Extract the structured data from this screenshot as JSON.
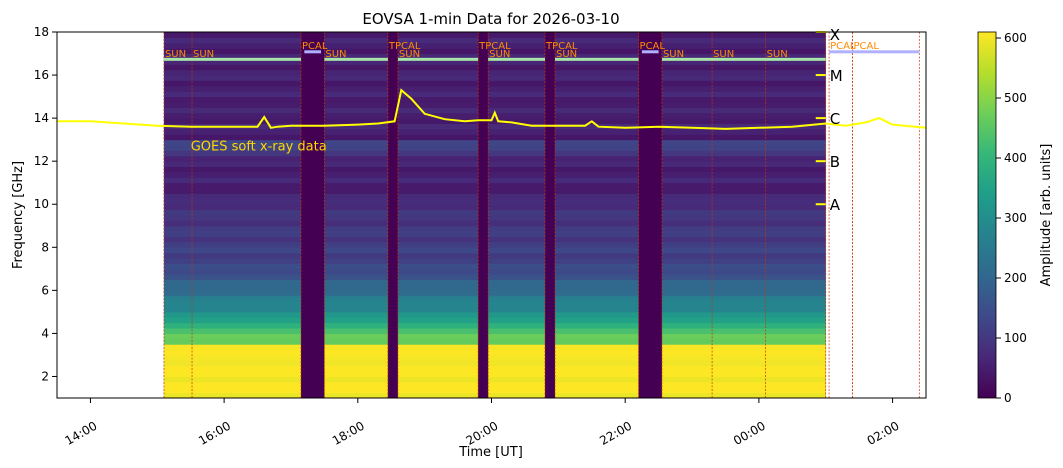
{
  "chart_data": {
    "type": "heatmap",
    "title": "EOVSA 1-min Data for 2026-03-10",
    "xlabel": "Time [UT]",
    "ylabel": "Frequency [GHz]",
    "colorbar_label": "Amplitude [arb. units]",
    "colormap": "viridis",
    "colors": {
      "cmap": [
        "#440154",
        "#482878",
        "#3e4989",
        "#31688e",
        "#26828e",
        "#1f9e89",
        "#35b779",
        "#6ece58",
        "#b5de2b",
        "#fde725"
      ],
      "goes_line": "#ffff00",
      "goes_text": "#ffd700",
      "sun_bar": "#a8e6a8",
      "cal_bar": "#b0b0ff",
      "event_label": "#ff8c00",
      "event_line": "#cc3300"
    },
    "xlim": [
      "13:30",
      "02:30"
    ],
    "ylim": [
      1,
      18
    ],
    "x_tick_labels": [
      "14:00",
      "16:00",
      "18:00",
      "20:00",
      "22:00",
      "00:00",
      "02:00"
    ],
    "x_tick_hours": [
      14,
      16,
      18,
      20,
      22,
      24,
      26
    ],
    "y_ticks": [
      2,
      4,
      6,
      8,
      10,
      12,
      14,
      16,
      18
    ],
    "colorbar_ticks": [
      0,
      100,
      200,
      300,
      400,
      500,
      600
    ],
    "colorbar_range": [
      0,
      610
    ],
    "data_window_hours": [
      15.1,
      25.0
    ],
    "gap_intervals_hours": [
      [
        17.15,
        17.5
      ],
      [
        18.45,
        18.6
      ],
      [
        19.8,
        19.95
      ],
      [
        20.8,
        20.95
      ],
      [
        22.2,
        22.55
      ]
    ],
    "events": [
      {
        "label": "SUN",
        "hour": 15.1
      },
      {
        "label": "SUN",
        "hour": 15.52
      },
      {
        "label": "PCAL",
        "hour": 17.15
      },
      {
        "label": "SUN",
        "hour": 17.5
      },
      {
        "label": "TPCAL",
        "hour": 18.45
      },
      {
        "label": "SUN",
        "hour": 18.6
      },
      {
        "label": "TPCAL",
        "hour": 19.8
      },
      {
        "label": "SUN",
        "hour": 19.95
      },
      {
        "label": "TPCAL",
        "hour": 20.8
      },
      {
        "label": "SUN",
        "hour": 20.95
      },
      {
        "label": "PCAL",
        "hour": 22.2
      },
      {
        "label": "SUN",
        "hour": 22.55
      },
      {
        "label": "SUN",
        "hour": 23.3
      },
      {
        "label": "SUN",
        "hour": 24.1
      },
      {
        "label": "PCAL",
        "hour": 25.05
      },
      {
        "label": "PCAL",
        "hour": 25.4
      }
    ],
    "extra_event_line_hours": [
      25.0,
      25.4,
      26.4
    ],
    "goes_label": "GOES soft x-ray data",
    "goes_class_labels": [
      "X",
      "M",
      "C",
      "B",
      "A"
    ],
    "goes_class_levels": [
      18.0,
      16.0,
      14.0,
      12.0,
      10.0
    ],
    "goes_series": {
      "name": "GOES soft x-ray data",
      "x_hours": [
        13.5,
        14.0,
        14.5,
        15.0,
        15.5,
        16.0,
        16.5,
        16.6,
        16.7,
        16.8,
        17.0,
        17.5,
        18.0,
        18.3,
        18.55,
        18.65,
        18.8,
        19.0,
        19.3,
        19.6,
        19.8,
        20.0,
        20.05,
        20.1,
        20.3,
        20.6,
        21.0,
        21.4,
        21.5,
        21.6,
        22.0,
        22.5,
        23.0,
        23.5,
        24.0,
        24.5,
        25.0,
        25.3,
        25.6,
        25.8,
        26.0,
        26.5
      ],
      "y_level": [
        13.85,
        13.85,
        13.75,
        13.65,
        13.6,
        13.6,
        13.6,
        14.05,
        13.55,
        13.6,
        13.65,
        13.65,
        13.7,
        13.75,
        13.85,
        15.3,
        14.9,
        14.2,
        13.95,
        13.85,
        13.9,
        13.9,
        14.25,
        13.85,
        13.8,
        13.65,
        13.65,
        13.65,
        13.85,
        13.6,
        13.55,
        13.6,
        13.55,
        13.5,
        13.55,
        13.6,
        13.75,
        13.65,
        13.8,
        14.0,
        13.7,
        13.55
      ]
    }
  }
}
